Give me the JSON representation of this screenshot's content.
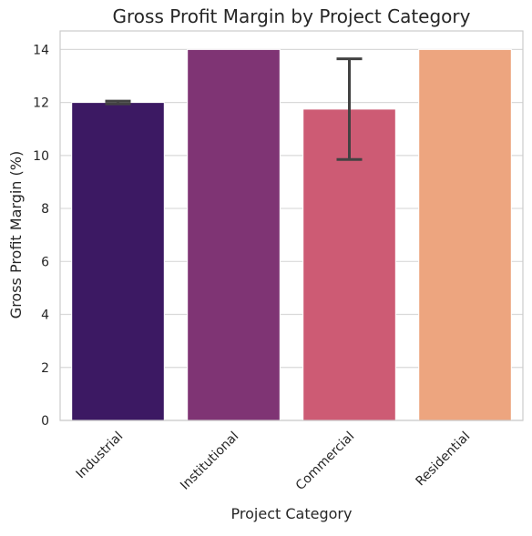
{
  "chart_data": {
    "type": "bar",
    "title": "Gross Profit Margin by Project Category",
    "xlabel": "Project Category",
    "ylabel": "Gross Profit Margin (%)",
    "categories": [
      "Industrial",
      "Institutional",
      "Commercial",
      "Residential"
    ],
    "values": [
      12.0,
      14.0,
      11.75,
      14.0
    ],
    "error_bars": [
      {
        "category": "Industrial",
        "low": 11.95,
        "high": 12.05
      },
      {
        "category": "Institutional",
        "low": 14.0,
        "high": 14.0
      },
      {
        "category": "Commercial",
        "low": 9.85,
        "high": 13.65
      },
      {
        "category": "Residential",
        "low": 14.0,
        "high": 14.0
      }
    ],
    "ylim": [
      0,
      14.7
    ],
    "yticks": [
      0,
      2,
      4,
      6,
      8,
      10,
      12,
      14
    ],
    "grid": "horizontal",
    "colors": [
      "#3c1963",
      "#7f3474",
      "#cd5b74",
      "#eda57f"
    ]
  }
}
